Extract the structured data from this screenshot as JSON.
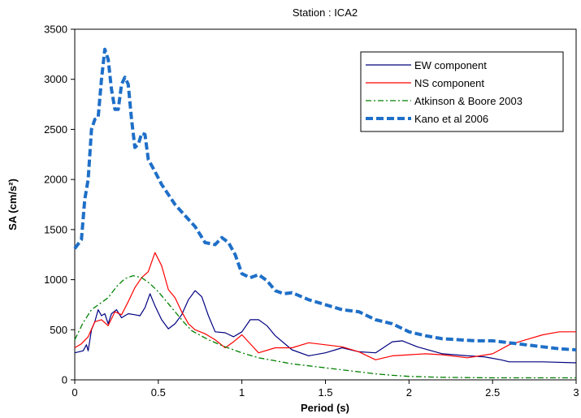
{
  "chart_data": {
    "type": "line",
    "title": "Station : ICA2",
    "xlabel": "Period (s)",
    "ylabel": "SA (cm/s²)",
    "xlim": [
      0,
      3
    ],
    "ylim": [
      0,
      3500
    ],
    "xticks": [
      0,
      0.5,
      1,
      1.5,
      2,
      2.5,
      3
    ],
    "xtick_labels": [
      "0",
      "0.5",
      "1",
      "1.5",
      "2",
      "2.5",
      "3"
    ],
    "yticks": [
      0,
      500,
      1000,
      1500,
      2000,
      2500,
      3000,
      3500
    ],
    "ytick_labels": [
      "0",
      "500",
      "1000",
      "1500",
      "2000",
      "2500",
      "3000",
      "3500"
    ],
    "grid": false,
    "legend_position": "top-right",
    "series": [
      {
        "name": "EW component",
        "color": "#000080",
        "style": "solid",
        "points": [
          [
            0,
            270
          ],
          [
            0.05,
            290
          ],
          [
            0.07,
            350
          ],
          [
            0.08,
            290
          ],
          [
            0.1,
            500
          ],
          [
            0.12,
            580
          ],
          [
            0.14,
            700
          ],
          [
            0.16,
            640
          ],
          [
            0.18,
            660
          ],
          [
            0.2,
            560
          ],
          [
            0.22,
            660
          ],
          [
            0.25,
            700
          ],
          [
            0.28,
            620
          ],
          [
            0.32,
            660
          ],
          [
            0.36,
            650
          ],
          [
            0.39,
            640
          ],
          [
            0.42,
            720
          ],
          [
            0.45,
            860
          ],
          [
            0.48,
            740
          ],
          [
            0.52,
            600
          ],
          [
            0.56,
            510
          ],
          [
            0.6,
            560
          ],
          [
            0.64,
            650
          ],
          [
            0.68,
            800
          ],
          [
            0.72,
            890
          ],
          [
            0.76,
            830
          ],
          [
            0.8,
            640
          ],
          [
            0.84,
            480
          ],
          [
            0.9,
            470
          ],
          [
            0.95,
            430
          ],
          [
            1.0,
            480
          ],
          [
            1.05,
            600
          ],
          [
            1.1,
            600
          ],
          [
            1.15,
            540
          ],
          [
            1.2,
            440
          ],
          [
            1.3,
            300
          ],
          [
            1.4,
            240
          ],
          [
            1.5,
            270
          ],
          [
            1.6,
            320
          ],
          [
            1.7,
            280
          ],
          [
            1.8,
            270
          ],
          [
            1.9,
            380
          ],
          [
            1.96,
            390
          ],
          [
            2.05,
            330
          ],
          [
            2.2,
            260
          ],
          [
            2.35,
            240
          ],
          [
            2.45,
            230
          ],
          [
            2.55,
            200
          ],
          [
            2.6,
            180
          ],
          [
            2.8,
            180
          ],
          [
            3.0,
            170
          ]
        ]
      },
      {
        "name": "NS component",
        "color": "#ff0000",
        "style": "solid",
        "points": [
          [
            0,
            320
          ],
          [
            0.04,
            360
          ],
          [
            0.08,
            430
          ],
          [
            0.12,
            580
          ],
          [
            0.16,
            600
          ],
          [
            0.2,
            540
          ],
          [
            0.24,
            680
          ],
          [
            0.28,
            650
          ],
          [
            0.32,
            780
          ],
          [
            0.36,
            920
          ],
          [
            0.4,
            1020
          ],
          [
            0.44,
            1080
          ],
          [
            0.48,
            1270
          ],
          [
            0.52,
            1140
          ],
          [
            0.56,
            900
          ],
          [
            0.6,
            820
          ],
          [
            0.64,
            680
          ],
          [
            0.68,
            560
          ],
          [
            0.72,
            500
          ],
          [
            0.78,
            460
          ],
          [
            0.84,
            400
          ],
          [
            0.9,
            320
          ],
          [
            0.95,
            380
          ],
          [
            1.0,
            450
          ],
          [
            1.05,
            360
          ],
          [
            1.1,
            270
          ],
          [
            1.2,
            320
          ],
          [
            1.3,
            320
          ],
          [
            1.4,
            370
          ],
          [
            1.5,
            350
          ],
          [
            1.6,
            330
          ],
          [
            1.7,
            280
          ],
          [
            1.8,
            200
          ],
          [
            1.9,
            240
          ],
          [
            2.0,
            250
          ],
          [
            2.1,
            260
          ],
          [
            2.2,
            250
          ],
          [
            2.35,
            220
          ],
          [
            2.5,
            260
          ],
          [
            2.6,
            350
          ],
          [
            2.7,
            400
          ],
          [
            2.8,
            450
          ],
          [
            2.9,
            480
          ],
          [
            3.0,
            480
          ]
        ]
      },
      {
        "name": "Atkinson & Boore 2003",
        "color": "#008000",
        "style": "dashdot",
        "points": [
          [
            0,
            400
          ],
          [
            0.05,
            570
          ],
          [
            0.1,
            700
          ],
          [
            0.15,
            760
          ],
          [
            0.2,
            820
          ],
          [
            0.25,
            930
          ],
          [
            0.3,
            1010
          ],
          [
            0.35,
            1040
          ],
          [
            0.4,
            1020
          ],
          [
            0.45,
            960
          ],
          [
            0.5,
            880
          ],
          [
            0.55,
            780
          ],
          [
            0.6,
            680
          ],
          [
            0.65,
            580
          ],
          [
            0.7,
            490
          ],
          [
            0.8,
            400
          ],
          [
            0.9,
            330
          ],
          [
            1.0,
            270
          ],
          [
            1.1,
            220
          ],
          [
            1.2,
            190
          ],
          [
            1.3,
            160
          ],
          [
            1.4,
            140
          ],
          [
            1.5,
            120
          ],
          [
            1.6,
            100
          ],
          [
            1.7,
            80
          ],
          [
            1.8,
            60
          ],
          [
            1.9,
            45
          ],
          [
            2.0,
            35
          ],
          [
            2.2,
            25
          ],
          [
            2.5,
            20
          ],
          [
            2.8,
            20
          ],
          [
            3.0,
            20
          ]
        ]
      },
      {
        "name": "Kano et al 2006",
        "color": "#1e6fc8",
        "style": "dashed-thick",
        "points": [
          [
            0,
            1310
          ],
          [
            0.04,
            1400
          ],
          [
            0.06,
            1800
          ],
          [
            0.08,
            2000
          ],
          [
            0.1,
            2500
          ],
          [
            0.12,
            2600
          ],
          [
            0.14,
            2620
          ],
          [
            0.16,
            3000
          ],
          [
            0.18,
            3300
          ],
          [
            0.2,
            3200
          ],
          [
            0.22,
            2900
          ],
          [
            0.24,
            2700
          ],
          [
            0.26,
            2700
          ],
          [
            0.28,
            2950
          ],
          [
            0.3,
            3020
          ],
          [
            0.32,
            2950
          ],
          [
            0.34,
            2600
          ],
          [
            0.36,
            2320
          ],
          [
            0.38,
            2350
          ],
          [
            0.4,
            2460
          ],
          [
            0.42,
            2450
          ],
          [
            0.44,
            2200
          ],
          [
            0.48,
            2080
          ],
          [
            0.52,
            1950
          ],
          [
            0.56,
            1850
          ],
          [
            0.6,
            1750
          ],
          [
            0.66,
            1640
          ],
          [
            0.72,
            1530
          ],
          [
            0.78,
            1370
          ],
          [
            0.84,
            1350
          ],
          [
            0.88,
            1420
          ],
          [
            0.92,
            1370
          ],
          [
            0.96,
            1250
          ],
          [
            1.0,
            1060
          ],
          [
            1.05,
            1020
          ],
          [
            1.1,
            1050
          ],
          [
            1.15,
            990
          ],
          [
            1.2,
            890
          ],
          [
            1.25,
            860
          ],
          [
            1.3,
            870
          ],
          [
            1.4,
            800
          ],
          [
            1.5,
            750
          ],
          [
            1.6,
            700
          ],
          [
            1.7,
            680
          ],
          [
            1.8,
            600
          ],
          [
            1.9,
            560
          ],
          [
            2.0,
            480
          ],
          [
            2.1,
            440
          ],
          [
            2.2,
            410
          ],
          [
            2.3,
            400
          ],
          [
            2.4,
            390
          ],
          [
            2.5,
            390
          ],
          [
            2.6,
            370
          ],
          [
            2.7,
            350
          ],
          [
            2.8,
            330
          ],
          [
            2.9,
            310
          ],
          [
            3.0,
            300
          ]
        ]
      }
    ]
  }
}
